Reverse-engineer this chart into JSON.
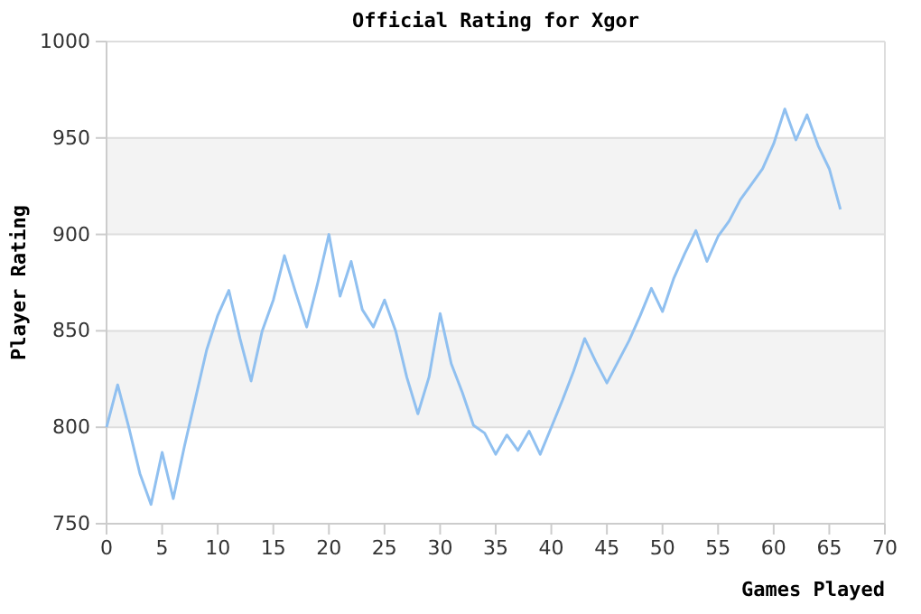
{
  "chart_data": {
    "type": "line",
    "title": "Official Rating for Xgor",
    "xlabel": "Games Played",
    "ylabel": "Player Rating",
    "x": [
      0,
      1,
      2,
      3,
      4,
      5,
      6,
      7,
      8,
      9,
      10,
      11,
      12,
      13,
      14,
      15,
      16,
      17,
      18,
      19,
      20,
      21,
      22,
      23,
      24,
      25,
      26,
      27,
      28,
      29,
      30,
      31,
      32,
      33,
      34,
      35,
      36,
      37,
      38,
      39,
      40,
      41,
      42,
      43,
      44,
      45,
      46,
      47,
      48,
      49,
      50,
      51,
      52,
      53,
      54,
      55,
      56,
      57,
      58,
      59,
      60,
      61,
      62,
      63,
      64,
      65,
      66
    ],
    "series": [
      {
        "color": "#90c0f0",
        "values": [
          800,
          822,
          800,
          776,
          760,
          787,
          763,
          790,
          815,
          840,
          858,
          871,
          846,
          824,
          850,
          866,
          889,
          870,
          852,
          875,
          900,
          868,
          886,
          861,
          852,
          866,
          850,
          826,
          807,
          826,
          859,
          833,
          818,
          801,
          797,
          786,
          796,
          788,
          798,
          786,
          800,
          814,
          829,
          846,
          834,
          823,
          834,
          845,
          858,
          872,
          860,
          877,
          890,
          902,
          886,
          899,
          907,
          918,
          926,
          934,
          947,
          965,
          949,
          962,
          946,
          934,
          913
        ]
      }
    ],
    "xlim": [
      0,
      70
    ],
    "xticks": [
      0,
      5,
      10,
      15,
      20,
      25,
      30,
      35,
      40,
      45,
      50,
      55,
      60,
      65,
      70
    ],
    "ylim": [
      750,
      1000
    ],
    "yticks": [
      750,
      800,
      850,
      900,
      950,
      1000
    ],
    "grid": "y",
    "line_style": "solid",
    "marker": "none",
    "bands": [
      {
        "axis": "y",
        "from": 800,
        "to": 850,
        "color": "#f3f3f3"
      },
      {
        "axis": "y",
        "from": 900,
        "to": 950,
        "color": "#f3f3f3"
      }
    ]
  }
}
